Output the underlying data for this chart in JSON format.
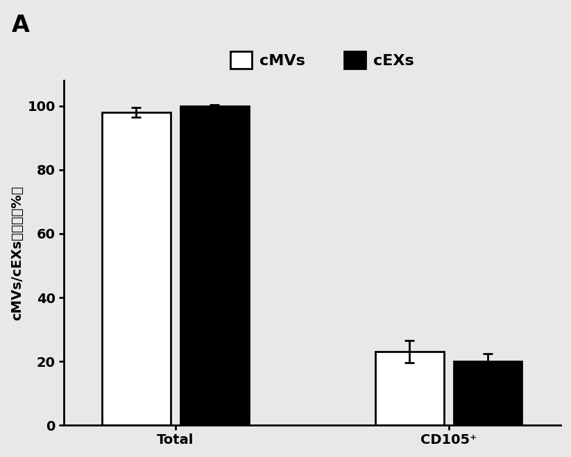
{
  "categories": [
    "Total",
    "CD105⁺"
  ],
  "cmvs_values": [
    98,
    23
  ],
  "cexs_values": [
    100,
    20
  ],
  "cmvs_errors": [
    1.5,
    3.5
  ],
  "cexs_errors": [
    0.5,
    2.5
  ],
  "cmvs_color": "#ffffff",
  "cexs_color": "#000000",
  "bar_edge_color": "#000000",
  "bar_width": 0.55,
  "ylabel_part1": "cMVs/cEXs",
  "ylabel_part2": "的纯化（%）",
  "ylim": [
    0,
    108
  ],
  "yticks": [
    0,
    20,
    40,
    60,
    80,
    100
  ],
  "panel_label": "A",
  "legend_cmvs": "cMVs",
  "legend_cexs": "cEXs",
  "background_color": "#e8e8e8",
  "axis_fontsize": 14,
  "tick_fontsize": 14,
  "legend_fontsize": 16
}
